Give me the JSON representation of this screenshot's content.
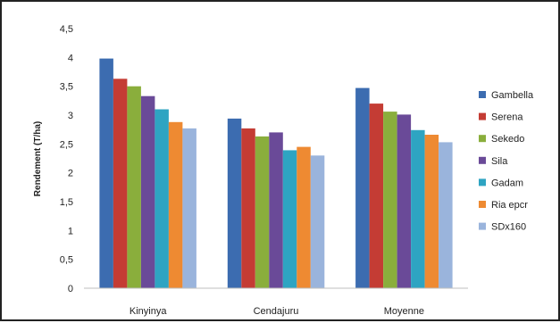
{
  "chart_data": {
    "type": "bar",
    "title": "",
    "xlabel": "",
    "ylabel": "Rendement (T/ha)",
    "ylim": [
      0,
      4.5
    ],
    "ytick_step": 0.5,
    "ytick_labels": [
      "0",
      "0,5",
      "1",
      "1,5",
      "2",
      "2,5",
      "3",
      "3,5",
      "4",
      "4,5"
    ],
    "grid": false,
    "legend_position": "right",
    "categories": [
      "Kinyinya",
      "Cendajuru",
      "Moyenne"
    ],
    "series": [
      {
        "name": "Gambella",
        "color": "#3c6cb0",
        "values": [
          3.98,
          2.94,
          3.47
        ]
      },
      {
        "name": "Serena",
        "color": "#c43c34",
        "values": [
          3.63,
          2.77,
          3.2
        ]
      },
      {
        "name": "Sekedo",
        "color": "#8aae3c",
        "values": [
          3.5,
          2.63,
          3.06
        ]
      },
      {
        "name": "Sila",
        "color": "#6a4a98",
        "values": [
          3.33,
          2.7,
          3.01
        ]
      },
      {
        "name": "Gadam",
        "color": "#2ea4c2",
        "values": [
          3.1,
          2.39,
          2.74
        ]
      },
      {
        "name": "Ria epcr",
        "color": "#ee8a32",
        "values": [
          2.88,
          2.45,
          2.66
        ]
      },
      {
        "name": "SDx160",
        "color": "#9ab4dc",
        "values": [
          2.77,
          2.3,
          2.53
        ]
      }
    ]
  }
}
